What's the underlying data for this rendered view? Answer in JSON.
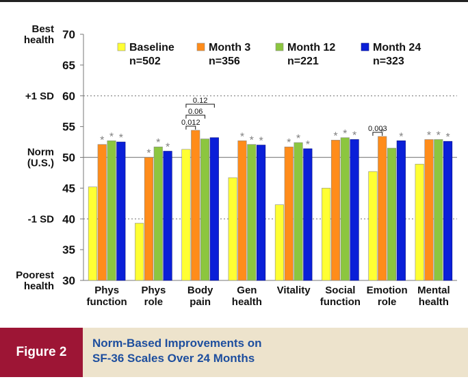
{
  "chart_data": {
    "type": "bar",
    "categories": [
      [
        "Phys",
        "function"
      ],
      [
        "Phys",
        "role"
      ],
      [
        "Body",
        "pain"
      ],
      [
        "Gen",
        "health"
      ],
      [
        "Vitality"
      ],
      [
        "Social",
        "function"
      ],
      [
        "Emotion",
        "role"
      ],
      [
        "Mental",
        "health"
      ]
    ],
    "series": [
      {
        "name": "Baseline",
        "n": "n=502",
        "color": "#ffff33",
        "values": [
          45.2,
          39.3,
          51.3,
          46.7,
          42.3,
          45.0,
          47.7,
          48.9
        ],
        "stars": [
          false,
          false,
          false,
          false,
          false,
          false,
          false,
          false
        ]
      },
      {
        "name": "Month 3",
        "n": "n=356",
        "color": "#ff8c1a",
        "values": [
          52.1,
          50.0,
          54.4,
          52.7,
          51.7,
          52.8,
          53.4,
          52.9
        ],
        "stars": [
          true,
          true,
          false,
          true,
          true,
          true,
          true,
          true
        ]
      },
      {
        "name": "Month 12",
        "n": "n=221",
        "color": "#8cc63f",
        "values": [
          52.7,
          51.7,
          53.0,
          52.1,
          52.4,
          53.2,
          51.5,
          52.9
        ],
        "stars": [
          true,
          true,
          false,
          true,
          true,
          true,
          false,
          true
        ]
      },
      {
        "name": "Month 24",
        "n": "n=323",
        "color": "#0a1fd8",
        "values": [
          52.5,
          51.0,
          53.2,
          52.0,
          51.4,
          52.9,
          52.7,
          52.6
        ],
        "stars": [
          true,
          true,
          false,
          true,
          true,
          true,
          true,
          true
        ]
      }
    ],
    "ylim": [
      30,
      70
    ],
    "yticks": [
      30,
      35,
      40,
      45,
      50,
      55,
      60,
      65,
      70
    ],
    "y_side_labels": [
      {
        "value": 70,
        "lines": [
          "Best",
          "health"
        ]
      },
      {
        "value": 60,
        "lines": [
          "+1 SD"
        ]
      },
      {
        "value": 50,
        "lines": [
          "Norm",
          "(U.S.)"
        ]
      },
      {
        "value": 40,
        "lines": [
          "-1 SD"
        ]
      },
      {
        "value": 30,
        "lines": [
          "Poorest",
          "health"
        ]
      }
    ],
    "reference_lines": [
      {
        "value": 60,
        "style": "dotted"
      },
      {
        "value": 50,
        "style": "solid"
      },
      {
        "value": 40,
        "style": "dotted"
      }
    ],
    "star_symbol": "*",
    "brackets": [
      {
        "category": 2,
        "from_series": 0,
        "to_series": 1,
        "label": "0.012"
      },
      {
        "category": 2,
        "from_series": 0,
        "to_series": 2,
        "label": "0.06"
      },
      {
        "category": 2,
        "from_series": 0,
        "to_series": 3,
        "label": "0.12"
      },
      {
        "category": 6,
        "from_series": 0,
        "to_series": 1,
        "label": "0.003"
      }
    ],
    "legend_placement": "top"
  },
  "caption": {
    "figure_label": "Figure 2",
    "title_lines": [
      "Norm-Based Improvements on",
      "SF-36 Scales Over 24 Months"
    ],
    "label_color": "#9d1535",
    "bar_color": "#ede3cc",
    "title_color": "#1d4e9e"
  }
}
